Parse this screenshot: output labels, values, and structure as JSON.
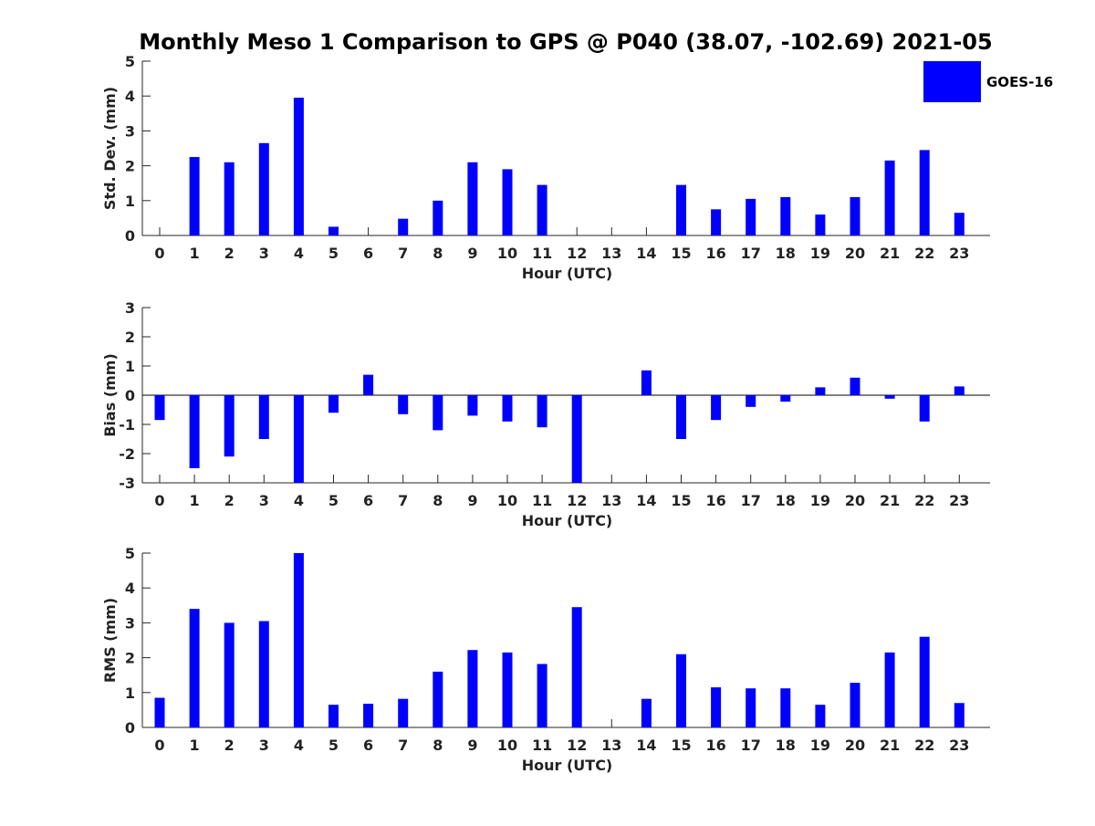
{
  "title": "Monthly Meso 1 Comparison to GPS @ P040 (38.07, -102.69) 2021-05",
  "legend": {
    "label": "GOES-16",
    "placement": "top-right",
    "color": "#0000ff"
  },
  "bar_color": "#0000ff",
  "chart_data": [
    {
      "type": "bar",
      "name": "std-dev",
      "title": "",
      "xlabel": "Hour (UTC)",
      "ylabel": "Std. Dev. (mm)",
      "ylim": [
        0,
        5
      ],
      "yticks": [
        0,
        1,
        2,
        3,
        4,
        5
      ],
      "categories": [
        "0",
        "1",
        "2",
        "3",
        "4",
        "5",
        "6",
        "7",
        "8",
        "9",
        "10",
        "11",
        "12",
        "13",
        "14",
        "15",
        "16",
        "17",
        "18",
        "19",
        "20",
        "21",
        "22",
        "23"
      ],
      "values": [
        0,
        2.25,
        2.1,
        2.65,
        3.95,
        0.25,
        0,
        0.48,
        1.0,
        2.1,
        1.9,
        1.45,
        0,
        0,
        0,
        1.45,
        0.75,
        1.05,
        1.1,
        0.6,
        1.1,
        2.15,
        2.45,
        0.65
      ]
    },
    {
      "type": "bar",
      "name": "bias",
      "title": "",
      "xlabel": "Hour (UTC)",
      "ylabel": "Bias (mm)",
      "ylim": [
        -3,
        3
      ],
      "yticks": [
        -3,
        -2,
        -1,
        0,
        1,
        2,
        3
      ],
      "categories": [
        "0",
        "1",
        "2",
        "3",
        "4",
        "5",
        "6",
        "7",
        "8",
        "9",
        "10",
        "11",
        "12",
        "13",
        "14",
        "15",
        "16",
        "17",
        "18",
        "19",
        "20",
        "21",
        "22",
        "23"
      ],
      "values": [
        -0.85,
        -2.5,
        -2.1,
        -1.5,
        -3.0,
        -0.6,
        0.7,
        -0.65,
        -1.2,
        -0.7,
        -0.9,
        -1.1,
        -3.0,
        0,
        0.85,
        -1.5,
        -0.85,
        -0.4,
        -0.22,
        0.27,
        0.6,
        -0.12,
        -0.9,
        0.3
      ],
      "zero_line": true
    },
    {
      "type": "bar",
      "name": "rms",
      "title": "",
      "xlabel": "Hour (UTC)",
      "ylabel": "RMS (mm)",
      "ylim": [
        0,
        5
      ],
      "yticks": [
        0,
        1,
        2,
        3,
        4,
        5
      ],
      "categories": [
        "0",
        "1",
        "2",
        "3",
        "4",
        "5",
        "6",
        "7",
        "8",
        "9",
        "10",
        "11",
        "12",
        "13",
        "14",
        "15",
        "16",
        "17",
        "18",
        "19",
        "20",
        "21",
        "22",
        "23"
      ],
      "values": [
        0.85,
        3.4,
        3.0,
        3.05,
        5.0,
        0.65,
        0.68,
        0.82,
        1.6,
        2.22,
        2.15,
        1.82,
        3.45,
        0,
        0.82,
        2.1,
        1.15,
        1.12,
        1.12,
        0.65,
        1.28,
        2.15,
        2.6,
        0.7
      ]
    }
  ]
}
